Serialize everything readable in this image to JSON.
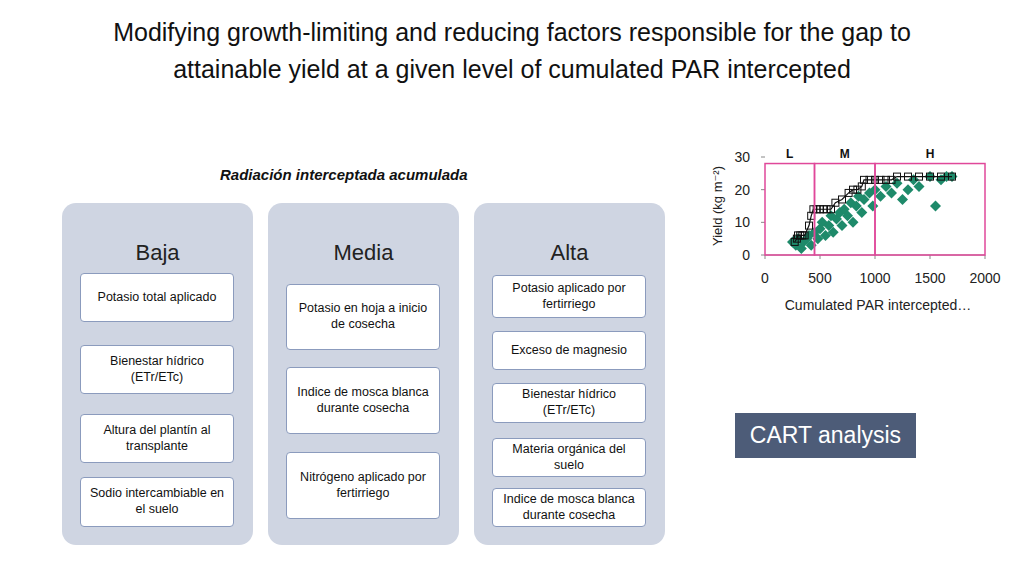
{
  "title": [
    "Modifying growth-limiting and reducing factors responsible for the gap to",
    "attainable yield at a given level of cumulated PAR intercepted"
  ],
  "subtitle": "Radiación interceptada acumulada",
  "columns": [
    {
      "header": "Baja",
      "items": [
        "Potasio total aplicado",
        "Bienestar hídrico (ETr/ETc)",
        "Altura del plantín al transplante",
        "Sodio intercambiable en el suelo"
      ]
    },
    {
      "header": "Media",
      "items": [
        "Potasio en hoja a inicio de cosecha",
        "Indice de mosca blanca durante cosecha",
        "Nitrógeno aplicado por fertirriego"
      ]
    },
    {
      "header": "Alta",
      "items": [
        "Potasio aplicado por fertirriego",
        "Exceso de magnesio",
        "Bienestar hídrico (ETr/ETc)",
        "Materia orgánica del suelo",
        "Indice de mosca blanca durante cosecha"
      ]
    }
  ],
  "badge": "CART analysis",
  "chart_data": {
    "type": "scatter",
    "x_label": "Cumulated PAR intercepted…",
    "y_label": "Yield (kg m⁻²)",
    "xlim": [
      0,
      2000
    ],
    "xticks": [
      0,
      500,
      1000,
      1500,
      2000
    ],
    "ylim": [
      0,
      30
    ],
    "yticks": [
      0,
      10,
      20,
      30
    ],
    "regions": [
      {
        "label": "L",
        "x": [
          0,
          450
        ]
      },
      {
        "label": "M",
        "x": [
          450,
          1000
        ]
      },
      {
        "label": "H",
        "x": [
          1000,
          2000
        ]
      }
    ],
    "region_ymax": 28,
    "series": [
      {
        "color": "#1e8a6a",
        "marker": "diamond",
        "x": [
          250,
          280,
          300,
          330,
          350,
          380,
          400,
          420,
          450,
          480,
          500,
          520,
          550,
          580,
          600,
          620,
          650,
          680,
          700,
          720,
          750,
          780,
          800,
          830,
          850,
          880,
          900,
          950,
          980,
          1000,
          1050,
          1100,
          1150,
          1200,
          1250,
          1300,
          1350,
          1400,
          1500,
          1550,
          1600,
          1650,
          1700
        ],
        "values": [
          4,
          3,
          5,
          2,
          4,
          5,
          6,
          3,
          7,
          5,
          8,
          10,
          6,
          9,
          12,
          7,
          11,
          13,
          9,
          14,
          12,
          16,
          10,
          15,
          18,
          13,
          17,
          19,
          15,
          20,
          18,
          21,
          19,
          22,
          17,
          20,
          23,
          21,
          24,
          15,
          23,
          24,
          24
        ]
      },
      {
        "color": "#111111",
        "marker": "square",
        "line_style": "solid",
        "x": [
          270,
          290,
          300,
          320,
          340,
          360,
          400,
          420,
          440,
          470,
          500,
          530,
          560,
          600,
          640,
          700,
          760,
          800,
          840,
          880,
          900,
          950,
          1000,
          1050,
          1100,
          1150,
          1200,
          1300,
          1400,
          1500,
          1600,
          1700
        ],
        "values": [
          4,
          5,
          6,
          6,
          6,
          6,
          9,
          12,
          14,
          14,
          14,
          14,
          14,
          14,
          16,
          17,
          19,
          20,
          20,
          21,
          23,
          23,
          23,
          23,
          23,
          23,
          24,
          24,
          24,
          24,
          24,
          24
        ]
      }
    ]
  }
}
